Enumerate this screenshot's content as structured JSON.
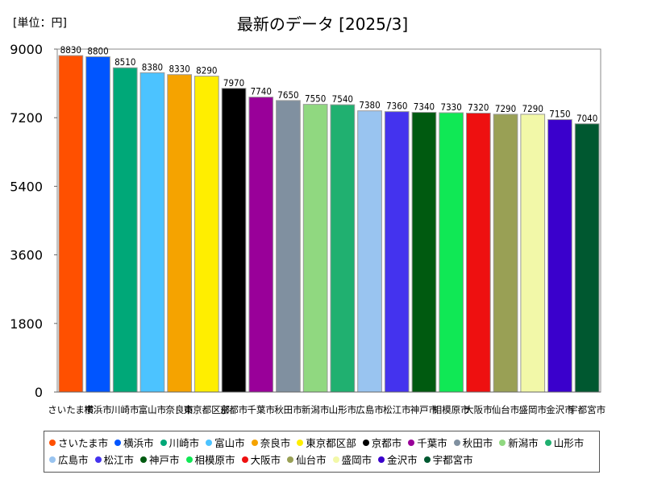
{
  "unit_label": "[単位：円]",
  "chart_data": {
    "type": "bar",
    "title": "最新のデータ [2025/3]",
    "ylim": [
      0,
      9000
    ],
    "yticks": [
      0,
      1800,
      3600,
      5400,
      7200,
      9000
    ],
    "grid": false,
    "legend_position": "bottom",
    "categories": [
      "さいたま市",
      "横浜市",
      "川崎市",
      "富山市",
      "奈良市",
      "東京都区部",
      "京都市",
      "千葉市",
      "秋田市",
      "新潟市",
      "山形市",
      "広島市",
      "松江市",
      "神戸市",
      "相模原市",
      "大阪市",
      "仙台市",
      "盛岡市",
      "金沢市",
      "宇都宮市"
    ],
    "values": [
      8830,
      8800,
      8510,
      8380,
      8330,
      8290,
      7970,
      7740,
      7650,
      7550,
      7540,
      7380,
      7360,
      7340,
      7330,
      7320,
      7290,
      7290,
      7150,
      7040
    ],
    "colors": [
      "#ff5000",
      "#0055ff",
      "#00a878",
      "#4cc3ff",
      "#f5a300",
      "#ffee00",
      "#000000",
      "#990099",
      "#8090a0",
      "#90d880",
      "#20b070",
      "#99c4f0",
      "#4433ee",
      "#005a10",
      "#10e855",
      "#ee1010",
      "#99a055",
      "#f2f8a8",
      "#3a00cc",
      "#005830"
    ]
  }
}
